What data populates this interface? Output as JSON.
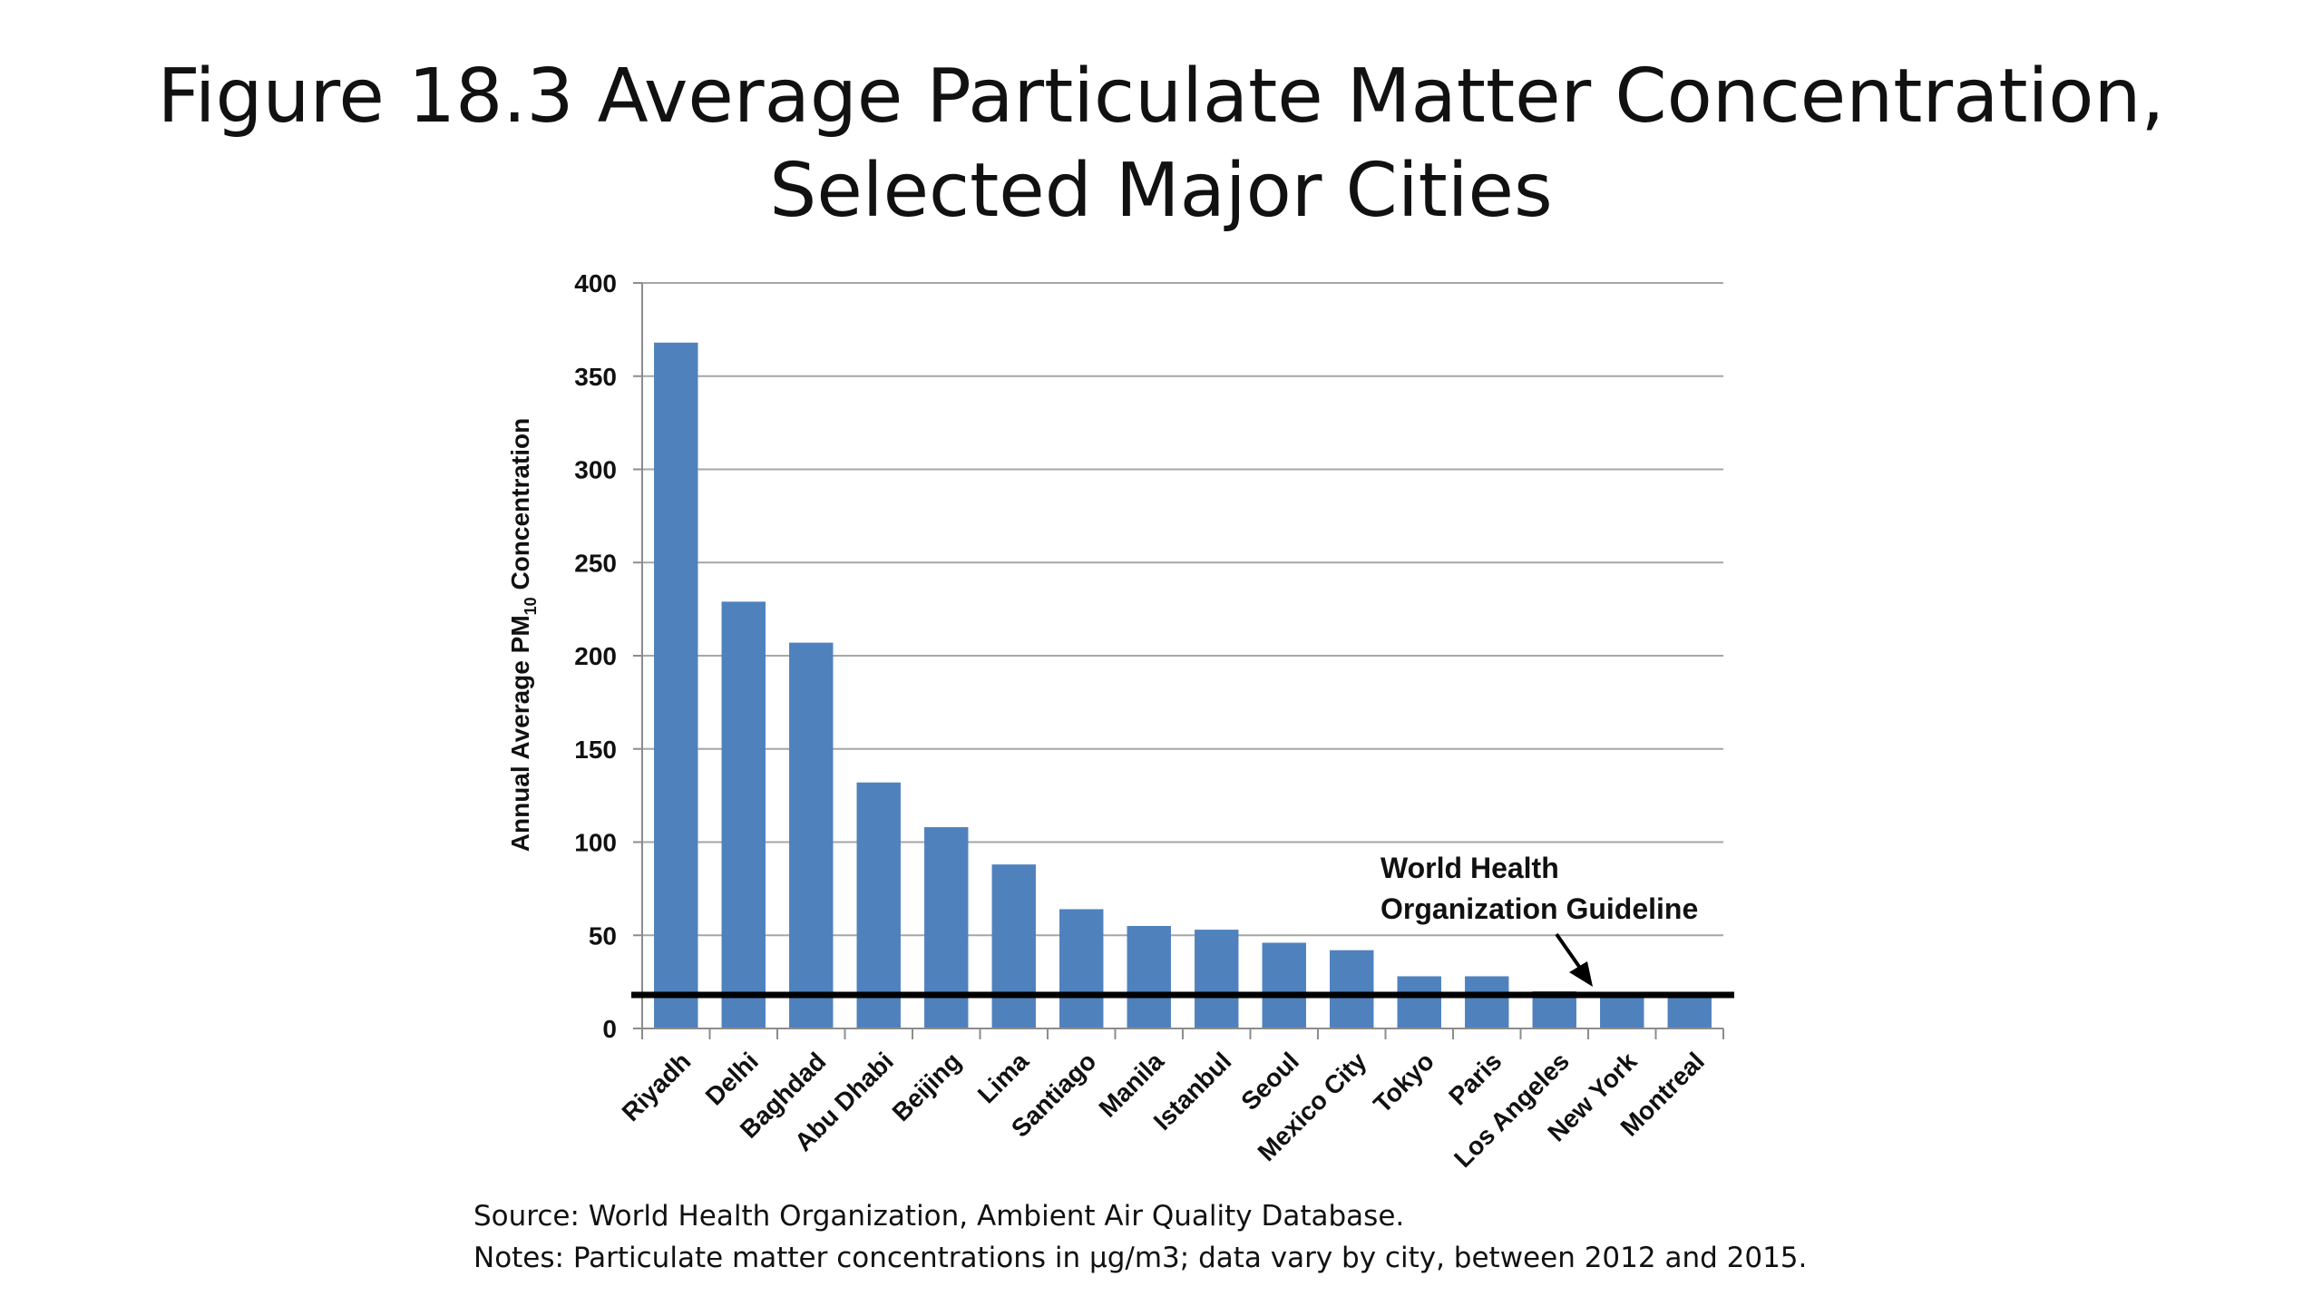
{
  "title": {
    "line1": "Figure 18.3 Average Particulate Matter Concentration,",
    "line2": "Selected Major Cities"
  },
  "chart_data": {
    "type": "bar",
    "categories": [
      "Riyadh",
      "Delhi",
      "Baghdad",
      "Abu Dhabi",
      "Beijing",
      "Lima",
      "Santiago",
      "Manila",
      "Istanbul",
      "Seoul",
      "Mexico City",
      "Tokyo",
      "Paris",
      "Los Angeles",
      "New York",
      "Montreal"
    ],
    "values": [
      368,
      229,
      207,
      132,
      108,
      88,
      64,
      55,
      53,
      46,
      42,
      28,
      28,
      20,
      17,
      17
    ],
    "ylabel_main": "Annual Average PM",
    "ylabel_sub": "10",
    "ylabel_tail": " Concentration",
    "ylim": [
      0,
      400
    ],
    "yticks": [
      0,
      50,
      100,
      150,
      200,
      250,
      300,
      350,
      400
    ],
    "grid": true,
    "bar_color": "#4F81BD",
    "guideline": {
      "value": 18,
      "label_line1": "World Health",
      "label_line2": "Organization Guideline",
      "color": "#000000"
    }
  },
  "notes": {
    "source": "Source: World Health Organization, Ambient Air Quality Database.",
    "notes": "Notes: Particulate matter concentrations in µg/m3; data vary by city, between 2012 and 2015."
  }
}
